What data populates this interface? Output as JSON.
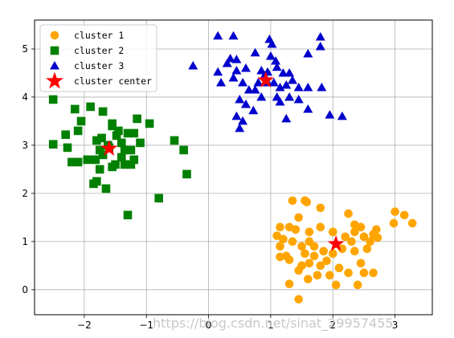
{
  "chart_data": {
    "type": "scatter",
    "xlim": [
      -2.8,
      3.6
    ],
    "ylim": [
      -0.52,
      5.6
    ],
    "xticks": [
      -2,
      -1,
      0,
      1,
      2,
      3
    ],
    "yticks": [
      0,
      1,
      2,
      3,
      4,
      5
    ],
    "grid": true,
    "legend_placement": "top-left",
    "series": [
      {
        "name": "cluster 1",
        "marker": "circle",
        "color": "#ffa500",
        "points": [
          [
            1.35,
            1.85
          ],
          [
            1.55,
            1.85
          ],
          [
            1.58,
            1.82
          ],
          [
            1.8,
            1.7
          ],
          [
            2.25,
            1.58
          ],
          [
            2.35,
            1.35
          ],
          [
            2.45,
            1.3
          ],
          [
            2.7,
            1.25
          ],
          [
            3.0,
            1.62
          ],
          [
            3.15,
            1.55
          ],
          [
            3.28,
            1.38
          ],
          [
            2.98,
            1.38
          ],
          [
            2.35,
            1.2
          ],
          [
            1.45,
            1.5
          ],
          [
            1.15,
            1.3
          ],
          [
            1.3,
            1.3
          ],
          [
            1.4,
            1.25
          ],
          [
            1.62,
            1.2
          ],
          [
            1.8,
            1.3
          ],
          [
            2.0,
            1.2
          ],
          [
            2.2,
            1.1
          ],
          [
            2.3,
            1.0
          ],
          [
            2.5,
            1.1
          ],
          [
            2.6,
            1.0
          ],
          [
            2.72,
            1.08
          ],
          [
            2.65,
            1.15
          ],
          [
            1.1,
            1.12
          ],
          [
            1.2,
            1.05
          ],
          [
            1.35,
            1.0
          ],
          [
            1.5,
            0.9
          ],
          [
            1.7,
            0.9
          ],
          [
            1.85,
            0.8
          ],
          [
            2.0,
            0.75
          ],
          [
            2.15,
            0.85
          ],
          [
            2.35,
            0.8
          ],
          [
            2.55,
            0.85
          ],
          [
            1.15,
            0.9
          ],
          [
            1.25,
            0.7
          ],
          [
            1.55,
            0.75
          ],
          [
            1.7,
            0.7
          ],
          [
            1.9,
            0.6
          ],
          [
            2.45,
            0.55
          ],
          [
            2.1,
            0.45
          ],
          [
            2.25,
            0.35
          ],
          [
            2.5,
            0.35
          ],
          [
            2.65,
            0.35
          ],
          [
            1.5,
            0.5
          ],
          [
            1.62,
            0.55
          ],
          [
            1.8,
            0.5
          ],
          [
            1.45,
            0.4
          ],
          [
            1.75,
            0.3
          ],
          [
            1.95,
            0.3
          ],
          [
            1.6,
            0.22
          ],
          [
            2.05,
            0.1
          ],
          [
            1.3,
            0.12
          ],
          [
            1.45,
            -0.2
          ],
          [
            2.4,
            0.1
          ],
          [
            1.3,
            0.62
          ],
          [
            1.62,
            1.0
          ],
          [
            1.15,
            0.68
          ]
        ]
      },
      {
        "name": "cluster 2",
        "marker": "square",
        "color": "#008000",
        "points": [
          [
            -2.5,
            3.95
          ],
          [
            -2.5,
            3.02
          ],
          [
            -2.3,
            3.22
          ],
          [
            -2.27,
            2.95
          ],
          [
            -2.2,
            2.65
          ],
          [
            -2.1,
            2.65
          ],
          [
            -1.95,
            2.7
          ],
          [
            -1.82,
            2.7
          ],
          [
            -2.15,
            3.75
          ],
          [
            -2.05,
            3.5
          ],
          [
            -2.1,
            3.3
          ],
          [
            -1.9,
            3.8
          ],
          [
            -1.7,
            3.7
          ],
          [
            -1.8,
            3.1
          ],
          [
            -1.75,
            2.9
          ],
          [
            -1.7,
            2.8
          ],
          [
            -1.6,
            2.95
          ],
          [
            -1.55,
            3.4
          ],
          [
            -1.55,
            3.45
          ],
          [
            -1.48,
            3.2
          ],
          [
            -1.4,
            3.05
          ],
          [
            -1.3,
            3.25
          ],
          [
            -1.2,
            3.25
          ],
          [
            -1.15,
            3.55
          ],
          [
            -1.1,
            3.05
          ],
          [
            -0.95,
            3.45
          ],
          [
            -1.75,
            2.5
          ],
          [
            -1.5,
            2.6
          ],
          [
            -1.4,
            2.75
          ],
          [
            -1.35,
            2.9
          ],
          [
            -1.25,
            2.9
          ],
          [
            -1.2,
            2.7
          ],
          [
            -1.55,
            2.55
          ],
          [
            -1.35,
            2.6
          ],
          [
            -1.25,
            2.6
          ],
          [
            -1.85,
            2.2
          ],
          [
            -1.8,
            2.25
          ],
          [
            -1.65,
            2.1
          ],
          [
            -0.8,
            1.9
          ],
          [
            -0.55,
            3.1
          ],
          [
            -0.4,
            2.9
          ],
          [
            -0.35,
            2.4
          ],
          [
            -1.3,
            1.55
          ],
          [
            -1.45,
            3.3
          ],
          [
            -1.62,
            3.0
          ],
          [
            -1.72,
            3.15
          ]
        ]
      },
      {
        "name": "cluster 3",
        "marker": "triangle",
        "color": "#0000cd",
        "points": [
          [
            0.15,
            5.27
          ],
          [
            0.4,
            5.27
          ],
          [
            0.98,
            5.2
          ],
          [
            1.02,
            5.1
          ],
          [
            1.8,
            5.25
          ],
          [
            1.8,
            5.05
          ],
          [
            0.35,
            4.8
          ],
          [
            0.45,
            4.78
          ],
          [
            0.75,
            4.92
          ],
          [
            1.0,
            4.85
          ],
          [
            1.08,
            4.75
          ],
          [
            1.6,
            4.9
          ],
          [
            -0.25,
            4.65
          ],
          [
            0.15,
            4.52
          ],
          [
            0.3,
            4.7
          ],
          [
            0.45,
            4.55
          ],
          [
            0.6,
            4.6
          ],
          [
            0.85,
            4.55
          ],
          [
            0.95,
            4.52
          ],
          [
            1.1,
            4.62
          ],
          [
            1.2,
            4.5
          ],
          [
            1.3,
            4.5
          ],
          [
            0.2,
            4.3
          ],
          [
            0.4,
            4.4
          ],
          [
            0.55,
            4.3
          ],
          [
            0.65,
            4.15
          ],
          [
            0.75,
            4.15
          ],
          [
            0.8,
            4.3
          ],
          [
            0.95,
            4.3
          ],
          [
            1.05,
            4.3
          ],
          [
            1.15,
            4.2
          ],
          [
            1.25,
            4.25
          ],
          [
            1.35,
            4.35
          ],
          [
            1.45,
            4.2
          ],
          [
            1.6,
            4.2
          ],
          [
            1.82,
            4.2
          ],
          [
            0.5,
            3.95
          ],
          [
            0.6,
            3.85
          ],
          [
            0.85,
            4.0
          ],
          [
            1.1,
            4.0
          ],
          [
            1.15,
            3.9
          ],
          [
            1.3,
            4.0
          ],
          [
            1.45,
            3.95
          ],
          [
            1.6,
            3.75
          ],
          [
            0.72,
            3.72
          ],
          [
            0.45,
            3.6
          ],
          [
            0.55,
            3.5
          ],
          [
            0.5,
            3.35
          ],
          [
            1.25,
            3.55
          ],
          [
            1.95,
            3.63
          ],
          [
            2.15,
            3.6
          ],
          [
            0.9,
            4.45
          ]
        ]
      },
      {
        "name": "cluster center",
        "marker": "star",
        "color": "#ff0000",
        "points": [
          [
            -1.6,
            2.93
          ],
          [
            0.92,
            4.35
          ],
          [
            2.05,
            0.95
          ]
        ]
      }
    ]
  },
  "watermark": "https://blog.csdn.net/sinat_29957455"
}
